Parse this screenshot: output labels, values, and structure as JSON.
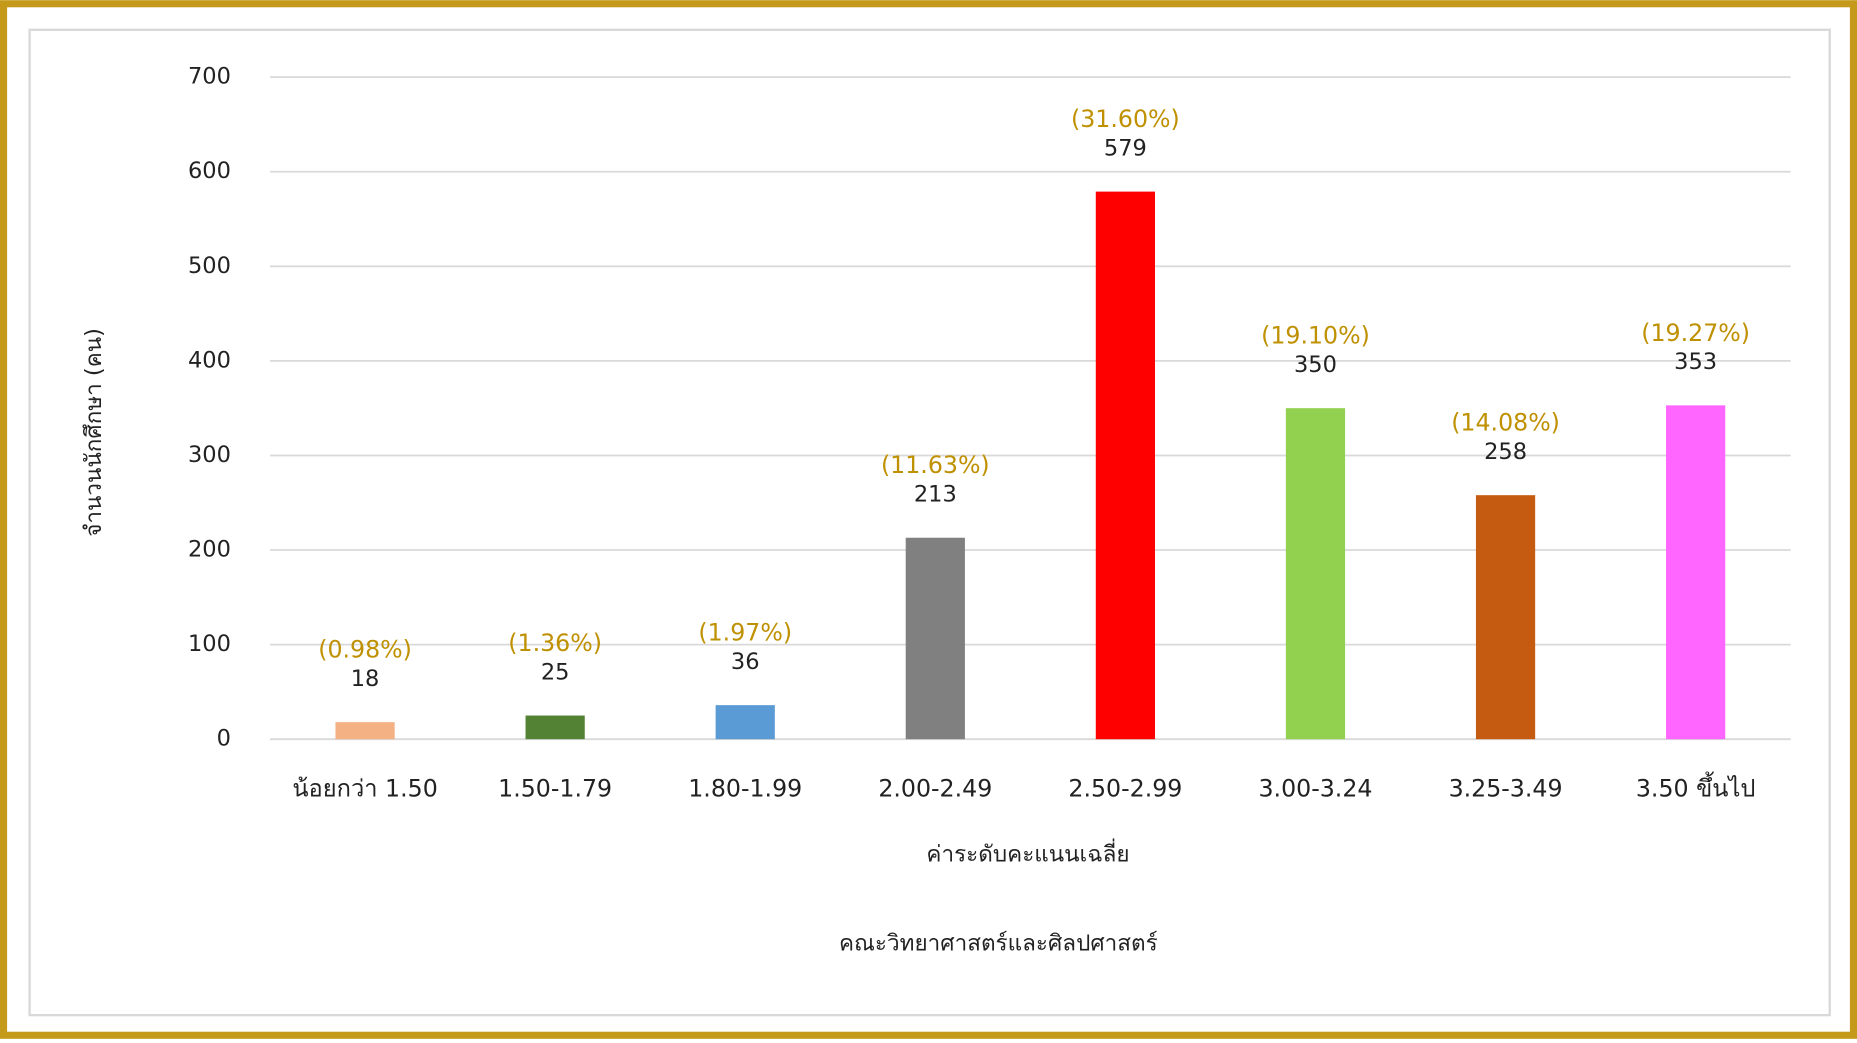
{
  "chart_data": {
    "type": "bar",
    "title": "คณะวิทยาศาสตร์และศิลปศาสตร์",
    "xlabel": "ค่าระดับคะแนนเฉลี่ย",
    "ylabel": "จำนวนนักศึกษา (คน)",
    "categories": [
      "น้อยกว่า 1.50",
      "1.50-1.79",
      "1.80-1.99",
      "2.00-2.49",
      "2.50-2.99",
      "3.00-3.24",
      "3.25-3.49",
      "3.50 ขึ้นไป"
    ],
    "values": [
      18,
      25,
      36,
      213,
      579,
      350,
      258,
      353
    ],
    "percent_labels": [
      "(0.98%)",
      "(1.36%)",
      "(1.97%)",
      "(11.63%)",
      "(31.60%)",
      "(19.10%)",
      "(14.08%)",
      "(19.27%)"
    ],
    "colors": [
      "#f4b183",
      "#548235",
      "#5b9bd5",
      "#808080",
      "#ff0000",
      "#92d050",
      "#c55a11",
      "#ff66ff"
    ],
    "ylim": [
      0,
      700
    ],
    "yticks": [
      0,
      100,
      200,
      300,
      400,
      500,
      600,
      700
    ],
    "grid": true
  }
}
